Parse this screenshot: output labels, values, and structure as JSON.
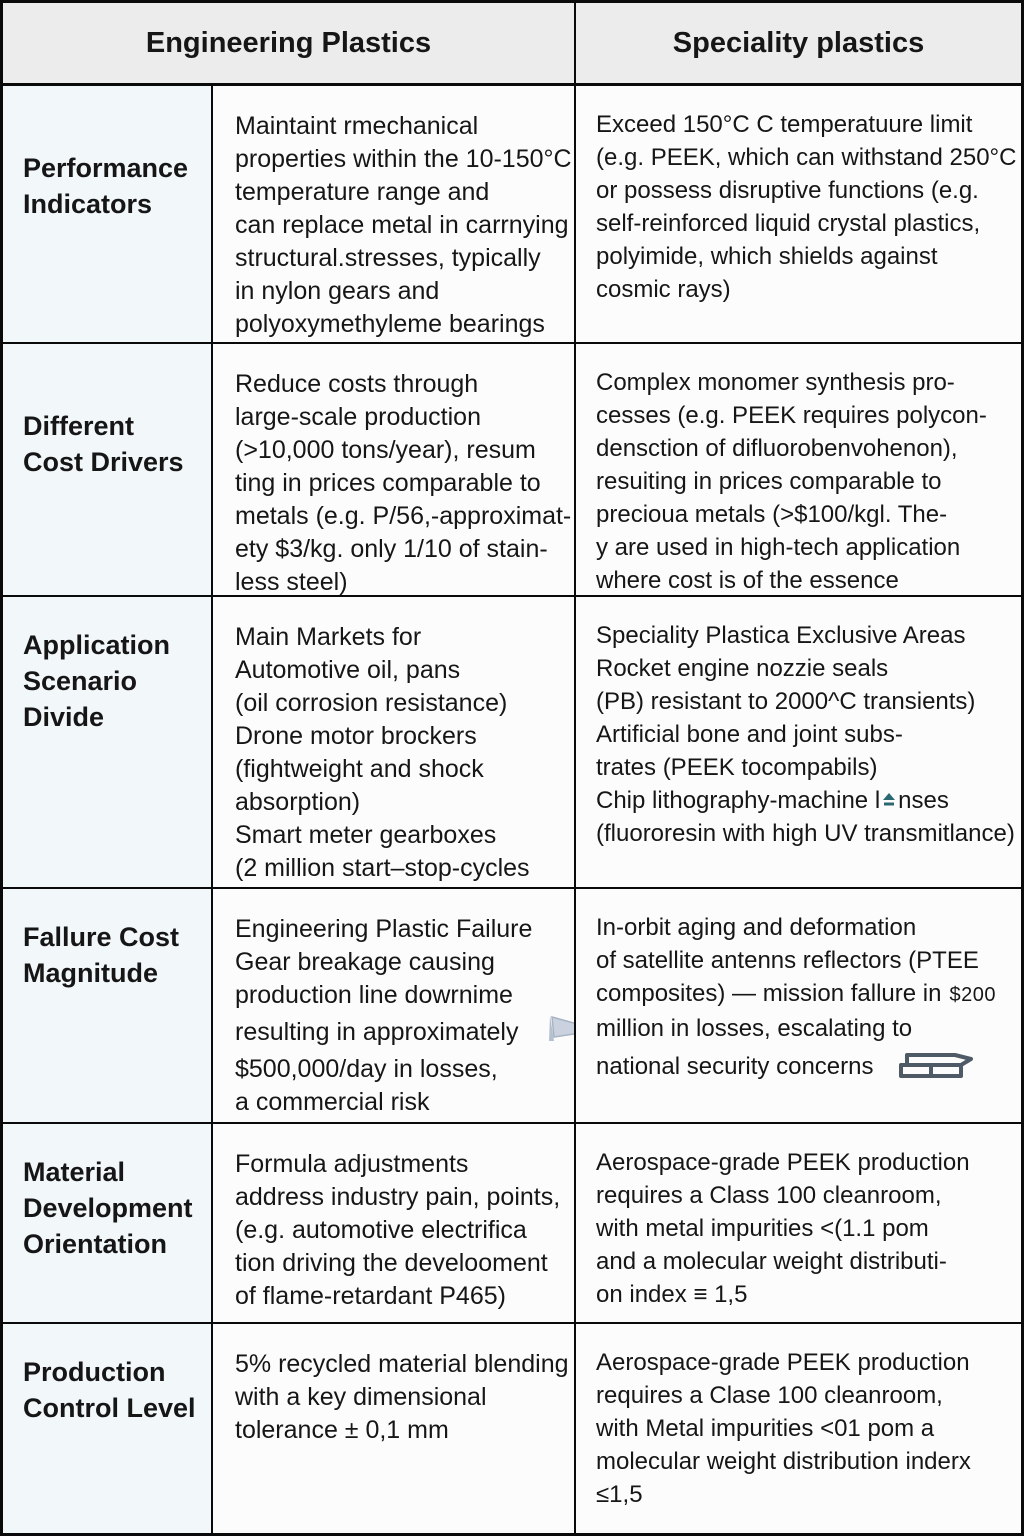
{
  "header": {
    "col_engineering": "Engineering Plastics",
    "col_speciality": "Speciality plastics"
  },
  "colors": {
    "border": "#0a0a0a",
    "header_bg": "#ececec",
    "label_col_bg": "#f2f7fa",
    "cell_bg": "#fcfcfc",
    "lens_glyph_teal": "#2c6872",
    "flag_icon_gray_blue": "#c9d2de",
    "stack_icon_slate": "#4e5a66"
  },
  "icons": {
    "lens_glyph": "eject-triangle-glyph",
    "flag": "flag-pennant",
    "stack": "stacked-plates-outline"
  },
  "rows": [
    {
      "label_lines": [
        "Performance",
        "Indicators"
      ],
      "engineering_lines": [
        "Maintaint rmechanical",
        "properties within the 10-150°C",
        "temperature range and",
        "can replace metal in carrnying",
        "structural.stresses, typically",
        "in nylon gears and",
        "polyoxymethyleme bearings"
      ],
      "speciality_lines": [
        "Exceed 150°C C temperatuure limit",
        "(e.g. PEEK, which can withstand 250°C",
        "or possess disruptive functions (e.g.",
        "self-reinforced liquid crystal plastics,",
        "polyimide, which shields against",
        "cosmic rays)"
      ]
    },
    {
      "label_lines": [
        "Different",
        "Cost Drivers"
      ],
      "engineering_lines": [
        "Reduce costs through",
        "large-scale production",
        "(>10,000 tons/year), resum",
        "ting in prices comparable to",
        "metals (e.g. P/56,-approximat-",
        "ety $3/kg. only 1/10 of stain-",
        "less steel)"
      ],
      "speciality_lines": [
        "Complex monomer synthesis pro-",
        "cesses (e.g. PEEK requires polycon-",
        "densction of difluorobenvohenon),",
        "resuiting in prices comparable to",
        "precioua metals (>$100/kgl. The-",
        "y are used in high-tech application",
        "where cost is of the essence"
      ]
    },
    {
      "label_lines": [
        "Application",
        "Scenario",
        "Divide"
      ],
      "engineering_lines": [
        "Main Markets for",
        "Automotive oil, pans",
        "(oil corrosion resistance)",
        "Drone motor brockers",
        "(fightweight and shock",
        "absorption)",
        "Smart meter gearboxes",
        "(2 million start–stop-cycles"
      ],
      "speciality_lines_a": [
        "Speciality Plastica Exclusive Areas",
        "Rocket engine nozzie seals",
        "(PB) resistant to 2000^C transients)",
        "Artificial bone and joint subs-",
        "trates (PEEK tocompabils)"
      ],
      "lens_line": {
        "pre": "Chip lithography-machine l",
        "post": "nses"
      },
      "speciality_lines_b": [
        "(fluororesin with high UV transmitlance)"
      ]
    },
    {
      "label_lines": [
        "Fallure Cost",
        "Magnitude"
      ],
      "engineering_lines_a": [
        "Engineering Plastic Failure",
        "Gear breakage causing",
        "production line dowrnime"
      ],
      "engineering_flag_line": "resulting in approximately",
      "engineering_lines_b": [
        "$500,000/day in losses,",
        "a commercial risk"
      ],
      "speciality_lines_a": [
        "In-orbit aging and deformation",
        "of satellite antenns reflectors (PTEE"
      ],
      "money_line": {
        "pre": "composites) — mission fallure in",
        "amount": "$200"
      },
      "speciality_lines_b": [
        "million in losses, escalating to"
      ],
      "stack_line": "national security concerns"
    },
    {
      "label_lines": [
        "Material",
        "Development",
        "Orientation"
      ],
      "engineering_lines": [
        "Formula adjustments",
        "address industry pain, points,",
        "(e.g. automotive electrifica",
        "tion driving the develooment",
        "of flame-retardant P465)"
      ],
      "speciality_lines": [
        "Aerospace-grade PEEK production",
        "requires a Class 100 cleanroom,",
        "with metal impurities <(1.1 pom",
        "and a molecular weight distributi-",
        "on index ≡ 1,5"
      ]
    },
    {
      "label_lines": [
        "Production",
        "Control Level"
      ],
      "engineering_lines": [
        "5% recycled material blending",
        "with a key dimensional",
        "tolerance ± 0,1 mm"
      ],
      "speciality_lines": [
        "Aerospace-grade PEEK production",
        "requires a Clase 100 cleanroom,",
        "with Metal impurities <01 pom a",
        "molecular weight distribution inderx",
        "≤1,5"
      ]
    }
  ]
}
